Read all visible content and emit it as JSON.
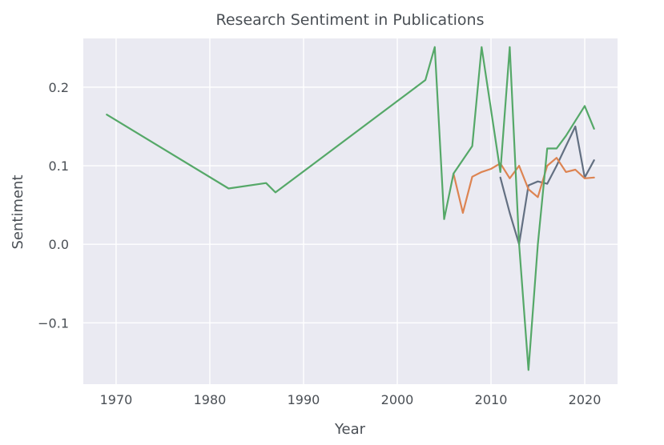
{
  "chart_data": {
    "type": "line",
    "title": "Research Sentiment in Publications",
    "xlabel": "Year",
    "ylabel": "Sentiment",
    "xlim": [
      1966.5,
      2023.5
    ],
    "ylim": [
      -0.178,
      0.262
    ],
    "xticks": [
      1970,
      1980,
      1990,
      2000,
      2010,
      2020
    ],
    "yticks": [
      -0.1,
      0.0,
      0.1,
      0.2
    ],
    "ytick_labels": [
      "−0.1",
      "0.0",
      "0.1",
      "0.2"
    ],
    "grid": true,
    "background": "#eaeaf2",
    "series": [
      {
        "color": "#637082",
        "x": [
          2011,
          2012,
          2013,
          2014,
          2015,
          2016,
          2017,
          2018,
          2019,
          2020,
          2021
        ],
        "y": [
          0.085,
          0.04,
          0.0,
          0.075,
          0.08,
          0.077,
          0.1,
          0.125,
          0.15,
          0.085,
          0.107
        ]
      },
      {
        "color": "#dd8452",
        "x": [
          2006,
          2007,
          2008,
          2009,
          2010,
          2011,
          2012,
          2013,
          2014,
          2015,
          2016,
          2017,
          2018,
          2019,
          2020,
          2021
        ],
        "y": [
          0.09,
          0.04,
          0.086,
          0.092,
          0.096,
          0.103,
          0.084,
          0.1,
          0.07,
          0.06,
          0.1,
          0.11,
          0.092,
          0.095,
          0.084,
          0.085
        ]
      },
      {
        "color": "#55a868",
        "x": [
          1969,
          1982,
          1986,
          1987,
          2003,
          2004,
          2005,
          2006,
          2008,
          2009,
          2011,
          2012,
          2013,
          2014,
          2015,
          2016,
          2017,
          2018,
          2019,
          2020,
          2021
        ],
        "y": [
          0.165,
          0.071,
          0.078,
          0.066,
          0.209,
          0.251,
          0.032,
          0.09,
          0.125,
          0.251,
          0.092,
          0.251,
          0.0,
          -0.16,
          0.0,
          0.122,
          0.122,
          0.138,
          0.157,
          0.176,
          0.147
        ]
      }
    ]
  }
}
